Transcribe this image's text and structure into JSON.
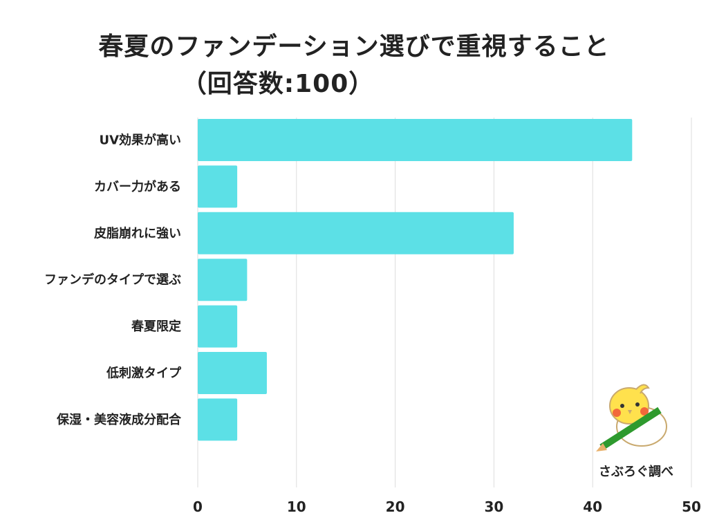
{
  "chart_data": {
    "type": "bar",
    "orientation": "horizontal",
    "title": "春夏のファンデーション選びで重視すること",
    "subtitle": "（回答数:100）",
    "categories": [
      "UV効果が高い",
      "カバー力がある",
      "皮脂崩れに強い",
      "ファンデのタイプで選ぶ",
      "春夏限定",
      "低刺激タイプ",
      "保湿・美容液成分配合"
    ],
    "values": [
      44,
      4,
      32,
      5,
      4,
      7,
      4
    ],
    "xlim": [
      0,
      50
    ],
    "xticks": [
      0,
      10,
      20,
      30,
      40,
      50
    ],
    "grid": true,
    "bar_color": "#5ce0e6",
    "xlabel": "",
    "ylabel": ""
  },
  "logo": {
    "text": "さぶろぐ調べ",
    "icon": "bird-mascot-with-pencil"
  }
}
